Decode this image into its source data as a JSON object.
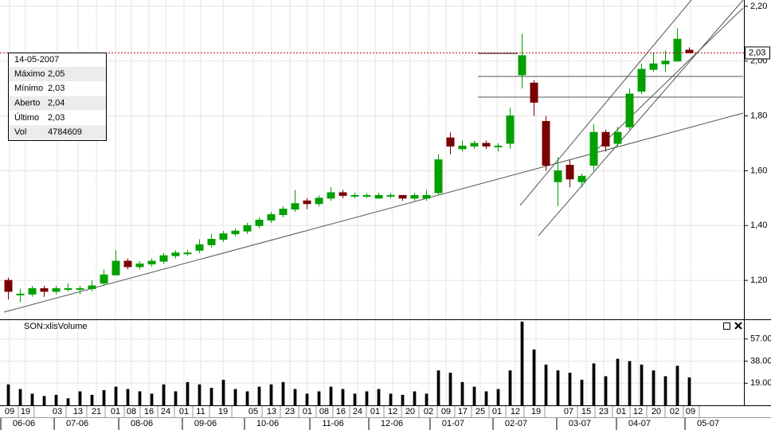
{
  "chart_data": [
    {
      "type": "candlestick",
      "up_color": "#00a000",
      "down_color": "#7a0000",
      "x": [
        0,
        1,
        2,
        3,
        4,
        5,
        6,
        7,
        8,
        9,
        10,
        11,
        12,
        13,
        14,
        15,
        16,
        17,
        18,
        19,
        20,
        21,
        22,
        23,
        24,
        25,
        26,
        27,
        28,
        29,
        30,
        31,
        32,
        33,
        34,
        35,
        36,
        37,
        38,
        39,
        40,
        41,
        42,
        43,
        44,
        45,
        46,
        47,
        48,
        49,
        50,
        51,
        52,
        53,
        54,
        55,
        56,
        57
      ],
      "open": [
        1.2,
        1.15,
        1.15,
        1.17,
        1.16,
        1.17,
        1.17,
        1.17,
        1.19,
        1.22,
        1.27,
        1.25,
        1.26,
        1.27,
        1.29,
        1.3,
        1.31,
        1.33,
        1.35,
        1.37,
        1.38,
        1.4,
        1.42,
        1.44,
        1.46,
        1.49,
        1.48,
        1.5,
        1.52,
        1.51,
        1.51,
        1.5,
        1.51,
        1.51,
        1.5,
        1.5,
        1.52,
        1.72,
        1.68,
        1.69,
        1.7,
        1.69,
        1.7,
        1.95,
        1.92,
        1.78,
        1.56,
        1.62,
        1.56,
        1.62,
        1.74,
        1.7,
        1.76,
        1.89,
        1.97,
        1.99,
        2.0,
        2.04
      ],
      "high": [
        1.21,
        1.17,
        1.18,
        1.18,
        1.18,
        1.19,
        1.18,
        1.2,
        1.24,
        1.31,
        1.28,
        1.27,
        1.28,
        1.3,
        1.31,
        1.31,
        1.35,
        1.37,
        1.38,
        1.39,
        1.41,
        1.43,
        1.45,
        1.47,
        1.53,
        1.5,
        1.51,
        1.54,
        1.53,
        1.52,
        1.52,
        1.52,
        1.52,
        1.51,
        1.52,
        1.53,
        1.66,
        1.74,
        1.71,
        1.71,
        1.71,
        1.7,
        1.83,
        2.1,
        1.93,
        1.8,
        1.65,
        1.64,
        1.59,
        1.77,
        1.75,
        1.76,
        1.9,
        1.99,
        2.03,
        2.04,
        2.12,
        2.05
      ],
      "low": [
        1.13,
        1.12,
        1.14,
        1.14,
        1.15,
        1.16,
        1.15,
        1.16,
        1.18,
        1.22,
        1.24,
        1.24,
        1.25,
        1.26,
        1.28,
        1.29,
        1.3,
        1.32,
        1.34,
        1.36,
        1.37,
        1.39,
        1.41,
        1.43,
        1.45,
        1.46,
        1.47,
        1.49,
        1.5,
        1.5,
        1.5,
        1.5,
        1.5,
        1.49,
        1.49,
        1.49,
        1.51,
        1.66,
        1.67,
        1.68,
        1.68,
        1.67,
        1.68,
        1.9,
        1.8,
        1.6,
        1.47,
        1.54,
        1.54,
        1.6,
        1.67,
        1.69,
        1.75,
        1.88,
        1.96,
        1.96,
        2.0,
        2.03
      ],
      "close": [
        1.16,
        1.15,
        1.17,
        1.16,
        1.17,
        1.17,
        1.17,
        1.18,
        1.22,
        1.27,
        1.25,
        1.26,
        1.27,
        1.29,
        1.3,
        1.3,
        1.33,
        1.35,
        1.37,
        1.38,
        1.4,
        1.42,
        1.44,
        1.46,
        1.48,
        1.48,
        1.5,
        1.52,
        1.51,
        1.51,
        1.51,
        1.51,
        1.51,
        1.5,
        1.51,
        1.51,
        1.64,
        1.69,
        1.69,
        1.7,
        1.69,
        1.69,
        1.8,
        2.02,
        1.85,
        1.62,
        1.6,
        1.57,
        1.58,
        1.74,
        1.69,
        1.74,
        1.88,
        1.97,
        1.99,
        2.0,
        2.08,
        2.03
      ],
      "xlim": [
        -0.5,
        61.5
      ],
      "ylim": [
        1.058,
        2.223
      ],
      "yticks": [
        {
          "value": 1.2,
          "label": "1,20"
        },
        {
          "value": 1.4,
          "label": "1,40"
        },
        {
          "value": 1.6,
          "label": "1,60"
        },
        {
          "value": 1.8,
          "label": "1,80"
        },
        {
          "value": 2.0,
          "label": "2,00"
        },
        {
          "value": 2.2,
          "label": "2,20"
        }
      ],
      "grid": true,
      "last_price": {
        "value": 2.03,
        "label": "2,03"
      },
      "info_box": {
        "date": "14-05-2007",
        "rows": [
          {
            "label": "Máximo",
            "value": "2,05"
          },
          {
            "label": "Mínimo",
            "value": "2,03"
          },
          {
            "label": "Aberto",
            "value": "2,04"
          },
          {
            "label": "Último",
            "value": "2,03"
          },
          {
            "label": "Vol",
            "value": "4784609"
          }
        ]
      }
    },
    {
      "type": "bar",
      "title": "SON:xlisVolume",
      "color": "#000000",
      "x": [
        0,
        1,
        2,
        3,
        4,
        5,
        6,
        7,
        8,
        9,
        10,
        11,
        12,
        13,
        14,
        15,
        16,
        17,
        18,
        19,
        20,
        21,
        22,
        23,
        24,
        25,
        26,
        27,
        28,
        29,
        30,
        31,
        32,
        33,
        34,
        35,
        36,
        37,
        38,
        39,
        40,
        41,
        42,
        43,
        44,
        45,
        46,
        47,
        48,
        49,
        50,
        51,
        52,
        53,
        54,
        55,
        56,
        57
      ],
      "values": [
        18,
        14,
        10,
        8,
        9,
        6,
        12,
        9,
        13,
        16,
        14,
        12,
        10,
        18,
        12,
        20,
        18,
        15,
        22,
        14,
        12,
        16,
        18,
        20,
        14,
        10,
        12,
        16,
        14,
        10,
        12,
        14,
        10,
        9,
        12,
        10,
        30,
        28,
        20,
        16,
        12,
        14,
        30,
        72,
        48,
        35,
        30,
        28,
        22,
        36,
        25,
        40,
        38,
        35,
        30,
        25,
        34,
        24
      ],
      "xlim": [
        -0.5,
        61.5
      ],
      "ylim": [
        0,
        72.6
      ],
      "yticks": [
        {
          "value": 19,
          "label": "19.00"
        },
        {
          "value": 38,
          "label": "38.00"
        },
        {
          "value": 57,
          "label": "57.00"
        }
      ],
      "grid": true,
      "xticks": [
        {
          "value": 0.1,
          "label": "09"
        },
        {
          "value": 1.43,
          "label": "19"
        },
        {
          "value": 4.1,
          "label": "03"
        },
        {
          "value": 5.83,
          "label": "13"
        },
        {
          "value": 7.37,
          "label": "21"
        },
        {
          "value": 8.97,
          "label": "01"
        },
        {
          "value": 10.3,
          "label": "08"
        },
        {
          "value": 11.77,
          "label": "16"
        },
        {
          "value": 13.17,
          "label": "24"
        },
        {
          "value": 14.7,
          "label": "01"
        },
        {
          "value": 16.1,
          "label": "11"
        },
        {
          "value": 17.97,
          "label": "19"
        },
        {
          "value": 20.5,
          "label": "05"
        },
        {
          "value": 22.03,
          "label": "13"
        },
        {
          "value": 23.57,
          "label": "23"
        },
        {
          "value": 25.03,
          "label": "01"
        },
        {
          "value": 26.43,
          "label": "08"
        },
        {
          "value": 27.83,
          "label": "16"
        },
        {
          "value": 29.23,
          "label": "24"
        },
        {
          "value": 30.7,
          "label": "01"
        },
        {
          "value": 32.17,
          "label": "12"
        },
        {
          "value": 33.63,
          "label": "20"
        },
        {
          "value": 35.17,
          "label": "02"
        },
        {
          "value": 36.63,
          "label": "09"
        },
        {
          "value": 38.03,
          "label": "17"
        },
        {
          "value": 39.5,
          "label": "25"
        },
        {
          "value": 40.9,
          "label": "01"
        },
        {
          "value": 42.43,
          "label": "12"
        },
        {
          "value": 44.17,
          "label": "19"
        },
        {
          "value": 46.9,
          "label": "07"
        },
        {
          "value": 48.37,
          "label": "15"
        },
        {
          "value": 49.83,
          "label": "23"
        },
        {
          "value": 51.3,
          "label": "01"
        },
        {
          "value": 52.7,
          "label": "12"
        },
        {
          "value": 54.23,
          "label": "20"
        },
        {
          "value": 55.77,
          "label": "02"
        },
        {
          "value": 57.1,
          "label": "09"
        }
      ],
      "month_ticks": [
        {
          "value": 1.3,
          "label": "06-06"
        },
        {
          "value": 5.77,
          "label": "07-06"
        },
        {
          "value": 11.17,
          "label": "08-06"
        },
        {
          "value": 16.5,
          "label": "09-06"
        },
        {
          "value": 21.7,
          "label": "10-06"
        },
        {
          "value": 27.17,
          "label": "11-06"
        },
        {
          "value": 32.1,
          "label": "12-06"
        },
        {
          "value": 37.23,
          "label": "01-07"
        },
        {
          "value": 42.5,
          "label": "02-07"
        },
        {
          "value": 47.83,
          "label": "03-07"
        },
        {
          "value": 52.83,
          "label": "04-07"
        },
        {
          "value": 58.57,
          "label": "05-07"
        }
      ]
    }
  ]
}
